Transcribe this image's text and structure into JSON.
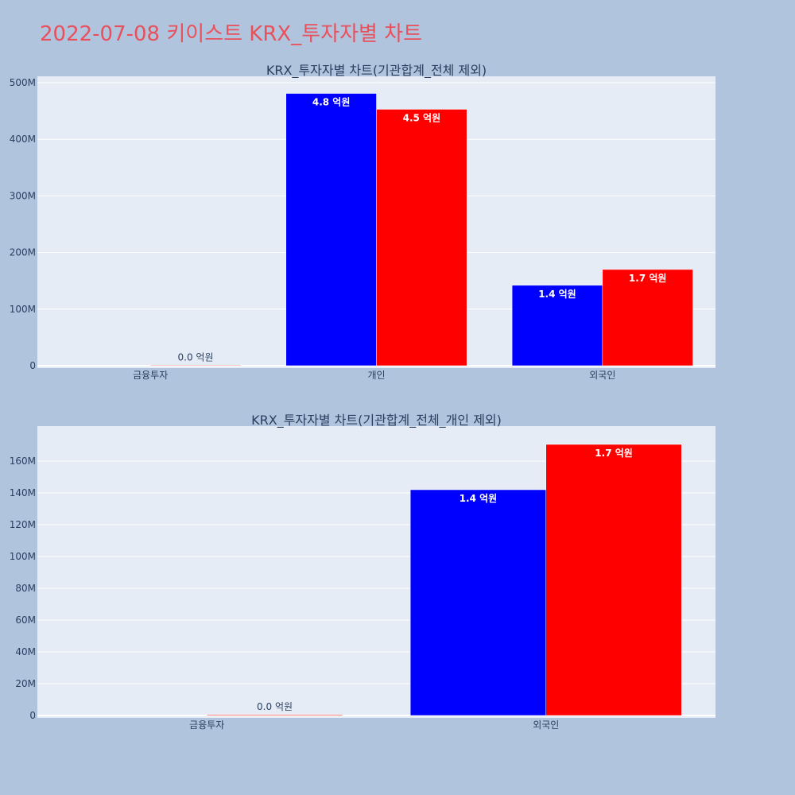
{
  "page": {
    "title": "2022-07-08 키이스트 KRX_투자자별 차트"
  },
  "colors": {
    "background": "#b0c4de",
    "plot_bg": "#e5ecf6",
    "grid": "#ffffff",
    "title": "#e8505b",
    "text": "#2a3f5f",
    "series_1": "#0000ff",
    "series_2": "#ff0000"
  },
  "chart_data": [
    {
      "type": "bar",
      "title": "KRX_투자자별 차트(기관합계_전체 제외)",
      "categories": [
        "금융투자",
        "개인",
        "외국인"
      ],
      "series": [
        {
          "color": "#0000ff",
          "values": [
            0,
            481000000,
            142000000
          ],
          "labels": [
            "",
            "4.8 억원",
            "1.4 억원"
          ]
        },
        {
          "color": "#ff0000",
          "values": [
            1000000,
            453000000,
            170000000
          ],
          "labels": [
            "0.0 억원",
            "4.5 억원",
            "1.7 억원"
          ]
        }
      ],
      "ylim": [
        0,
        500000000
      ],
      "yticks": [
        0,
        100000000,
        200000000,
        300000000,
        400000000,
        500000000
      ],
      "ytick_labels": [
        "0",
        "100M",
        "200M",
        "300M",
        "400M",
        "500M"
      ],
      "grid": true
    },
    {
      "type": "bar",
      "title": "KRX_투자자별 차트(기관합계_전체_개인 제외)",
      "categories": [
        "금융투자",
        "외국인"
      ],
      "series": [
        {
          "color": "#0000ff",
          "values": [
            0,
            142000000
          ],
          "labels": [
            "",
            "1.4 억원"
          ]
        },
        {
          "color": "#ff0000",
          "values": [
            500000,
            170500000
          ],
          "labels": [
            "0.0 억원",
            "1.7 억원"
          ]
        }
      ],
      "ylim": [
        0,
        170000000
      ],
      "yticks": [
        0,
        20000000,
        40000000,
        60000000,
        80000000,
        100000000,
        120000000,
        140000000,
        160000000
      ],
      "ytick_labels": [
        "0",
        "20M",
        "40M",
        "60M",
        "80M",
        "100M",
        "120M",
        "140M",
        "160M"
      ],
      "grid": true
    }
  ]
}
